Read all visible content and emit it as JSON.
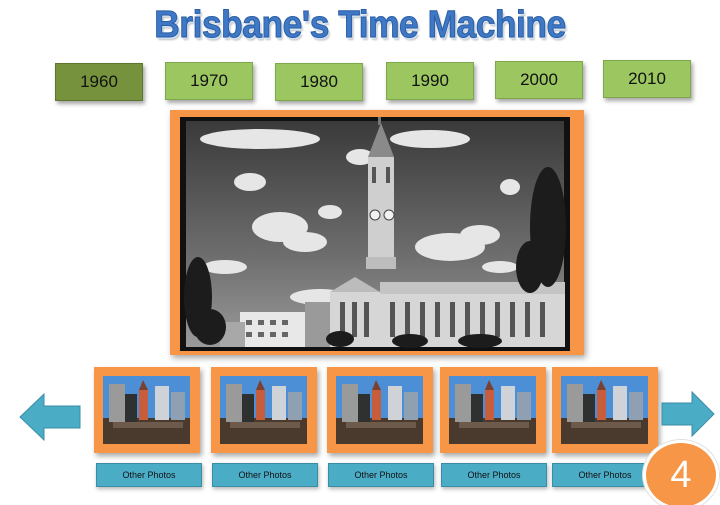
{
  "title": "Brisbane's Time Machine",
  "decades": [
    {
      "label": "1960",
      "active": true
    },
    {
      "label": "1970",
      "active": false
    },
    {
      "label": "1980",
      "active": false
    },
    {
      "label": "1990",
      "active": false
    },
    {
      "label": "2000",
      "active": false
    },
    {
      "label": "2010",
      "active": false
    }
  ],
  "thumbnails": [
    {
      "button_label": "Other Photos"
    },
    {
      "button_label": "Other Photos"
    },
    {
      "button_label": "Other Photos"
    },
    {
      "button_label": "Other Photos"
    },
    {
      "button_label": "Other Photos"
    }
  ],
  "page_badge": "4",
  "icons": {
    "prev": "arrow-left-icon",
    "next": "arrow-right-icon"
  },
  "colors": {
    "title": "#3f78c4",
    "decade_button": "#9cc760",
    "decade_button_active": "#76923c",
    "frame": "#f79646",
    "thumb_button": "#4bacc6",
    "arrow": "#4bacc6",
    "badge": "#f79646"
  }
}
